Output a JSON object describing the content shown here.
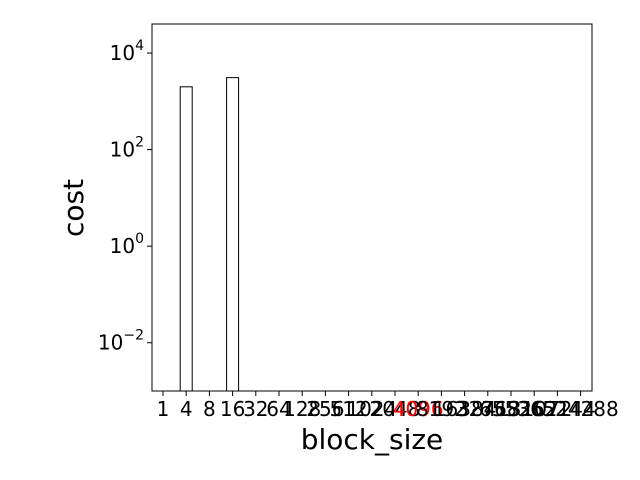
{
  "chart_data": {
    "type": "bar",
    "scale_y": "log",
    "xlabel": "block_size",
    "ylabel": "cost",
    "categories": [
      "1",
      "4",
      "8",
      "16",
      "32",
      "64",
      "128",
      "256",
      "512",
      "1024",
      "2048",
      "4096",
      "8192",
      "16384",
      "32768",
      "65536",
      "131072",
      "262144",
      "524288"
    ],
    "highlighted_category": "4096",
    "highlight_color": "#ff0000",
    "values": [
      null,
      2000,
      null,
      3100,
      null,
      null,
      null,
      null,
      null,
      null,
      null,
      null,
      null,
      null,
      null,
      null,
      null,
      null,
      null
    ],
    "ylim": [
      0.001,
      40000
    ],
    "yticks": [
      {
        "value": 0.01,
        "base": "10",
        "exp": "−2"
      },
      {
        "value": 1,
        "base": "10",
        "exp": "0"
      },
      {
        "value": 100,
        "base": "10",
        "exp": "2"
      },
      {
        "value": 10000,
        "base": "10",
        "exp": "4"
      }
    ],
    "bar_fill": "#ffffff",
    "bar_edge": "#000000",
    "grid": false,
    "legend": "none"
  }
}
